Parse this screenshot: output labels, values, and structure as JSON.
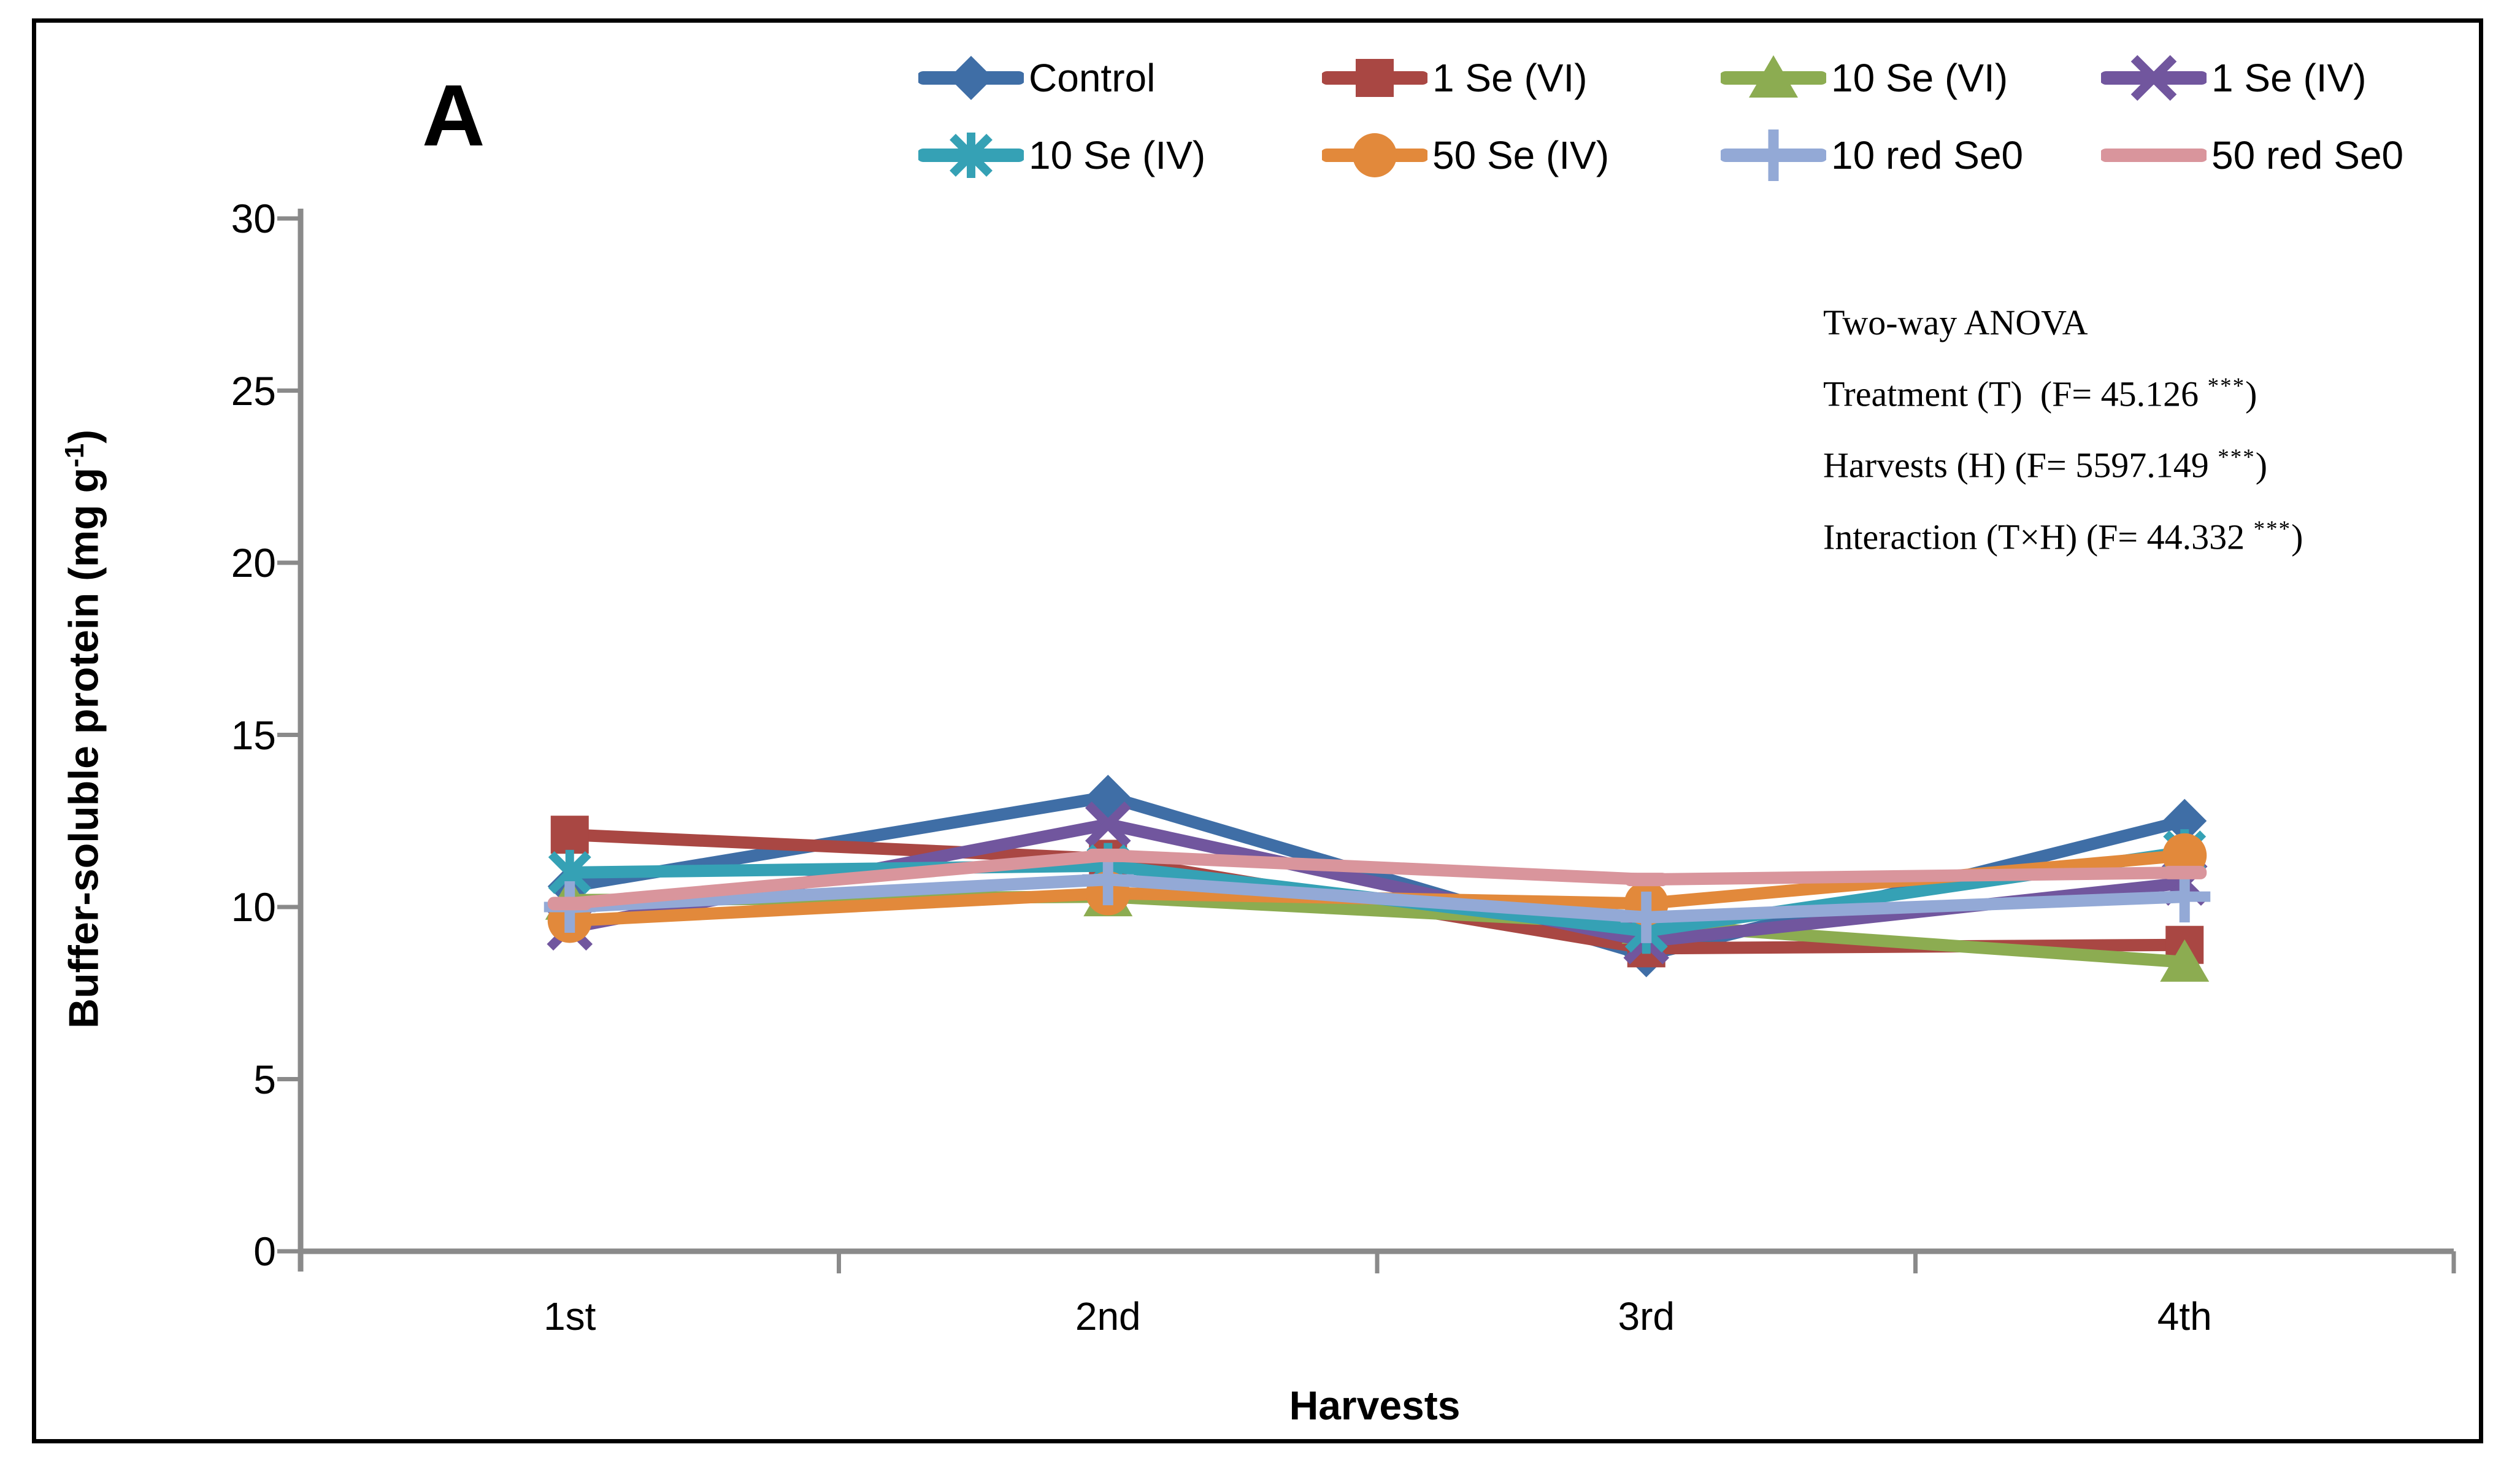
{
  "panel_label": "A",
  "frame_color": "#000000",
  "chart_data": {
    "type": "line",
    "categories": [
      "1st",
      "2nd",
      "3rd",
      "4th"
    ],
    "xlabel": "Harvests",
    "ylabel": "Buffer-soluble protein (mg g⁻¹)",
    "ylabel_parts": {
      "pre": "Buffer-soluble protein (mg g",
      "sup": "-1",
      "post": ")"
    },
    "ylim": [
      0,
      30
    ],
    "ytick_step": 5,
    "grid": false,
    "legend_position": "top",
    "axis_color": "#8A8A8A",
    "series": [
      {
        "name": "Control",
        "color": "#3F6EA6",
        "marker": "diamond",
        "values": [
          10.6,
          13.2,
          8.6,
          12.5
        ]
      },
      {
        "name": "1 Se (VI)",
        "color": "#A94743",
        "marker": "square",
        "values": [
          12.1,
          11.4,
          8.8,
          8.9
        ]
      },
      {
        "name": "10 Se (VI)",
        "color": "#8CAC51",
        "marker": "triangle",
        "values": [
          10.2,
          10.3,
          9.5,
          8.4
        ]
      },
      {
        "name": "1 Se (IV)",
        "color": "#71569E",
        "marker": "x",
        "values": [
          9.4,
          12.4,
          9.0,
          10.7
        ]
      },
      {
        "name": "10 Se (IV)",
        "color": "#35A1B5",
        "marker": "asterisk",
        "values": [
          11.0,
          11.2,
          9.3,
          11.6
        ]
      },
      {
        "name": "50 Se (IV)",
        "color": "#E2893B",
        "marker": "circle",
        "values": [
          9.6,
          10.4,
          10.1,
          11.5
        ]
      },
      {
        "name": "10 red Se0",
        "color": "#93A9D6",
        "marker": "plus",
        "values": [
          10.0,
          10.8,
          9.7,
          10.3
        ]
      },
      {
        "name": "50 red Se0",
        "color": "#D9959C",
        "marker": "dash",
        "values": [
          10.1,
          11.5,
          10.8,
          11.0
        ]
      }
    ],
    "annotation": {
      "lines": [
        {
          "pre": "Two-way ANOVA",
          "sup": "",
          "post": ""
        },
        {
          "pre": "Treatment (T)  (F= 45.126 ",
          "sup": "***",
          "post": ")"
        },
        {
          "pre": "Harvests (H) (F= 5597.149 ",
          "sup": "***",
          "post": ")"
        },
        {
          "pre": "Interaction (T×H) (F= 44.332 ",
          "sup": "***",
          "post": ")"
        }
      ]
    }
  }
}
